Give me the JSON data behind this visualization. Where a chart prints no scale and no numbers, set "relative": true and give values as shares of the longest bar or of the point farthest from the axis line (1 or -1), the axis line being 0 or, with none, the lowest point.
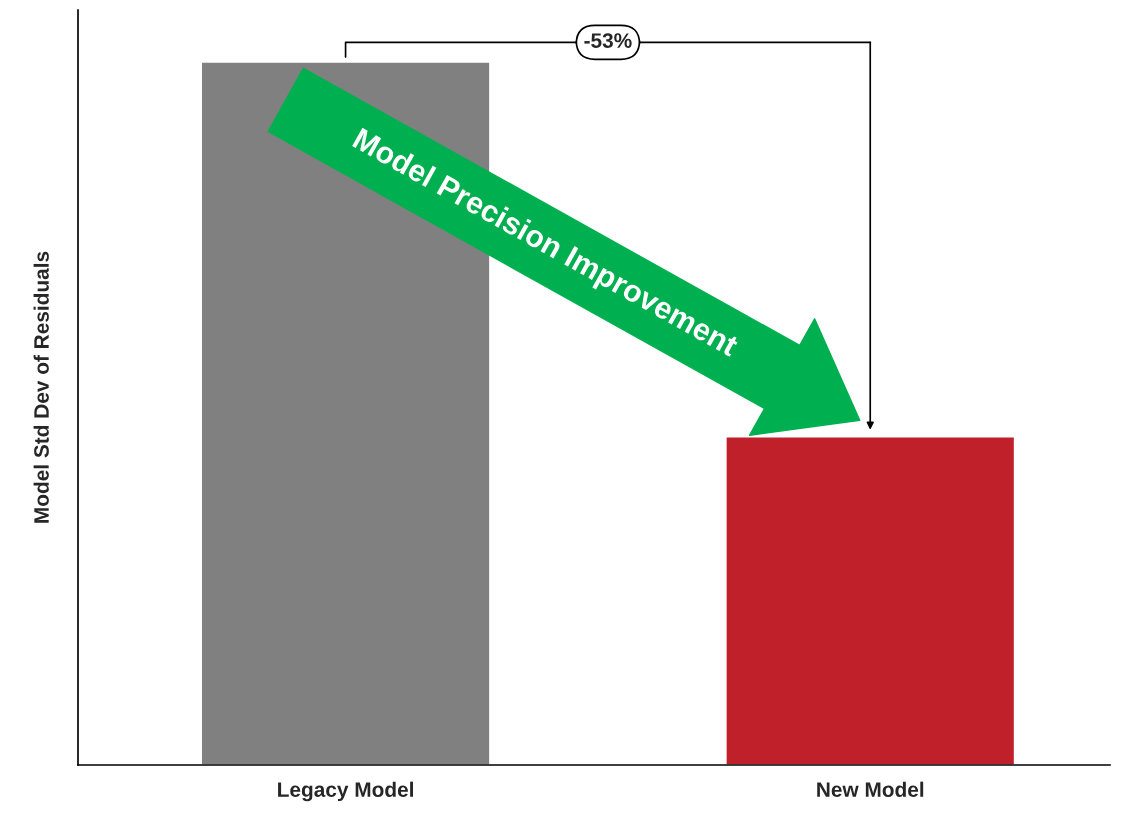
{
  "chart_data": {
    "type": "bar",
    "ylabel": "Model Std Dev of Residuals",
    "categories": [
      "Legacy Model",
      "New Model"
    ],
    "values": [
      1,
      0.467
    ],
    "colors": [
      "#808080",
      "#c0202a"
    ],
    "relative": true,
    "grid": false,
    "annotations": [
      "-53%",
      "Model Precision Improvement"
    ]
  }
}
